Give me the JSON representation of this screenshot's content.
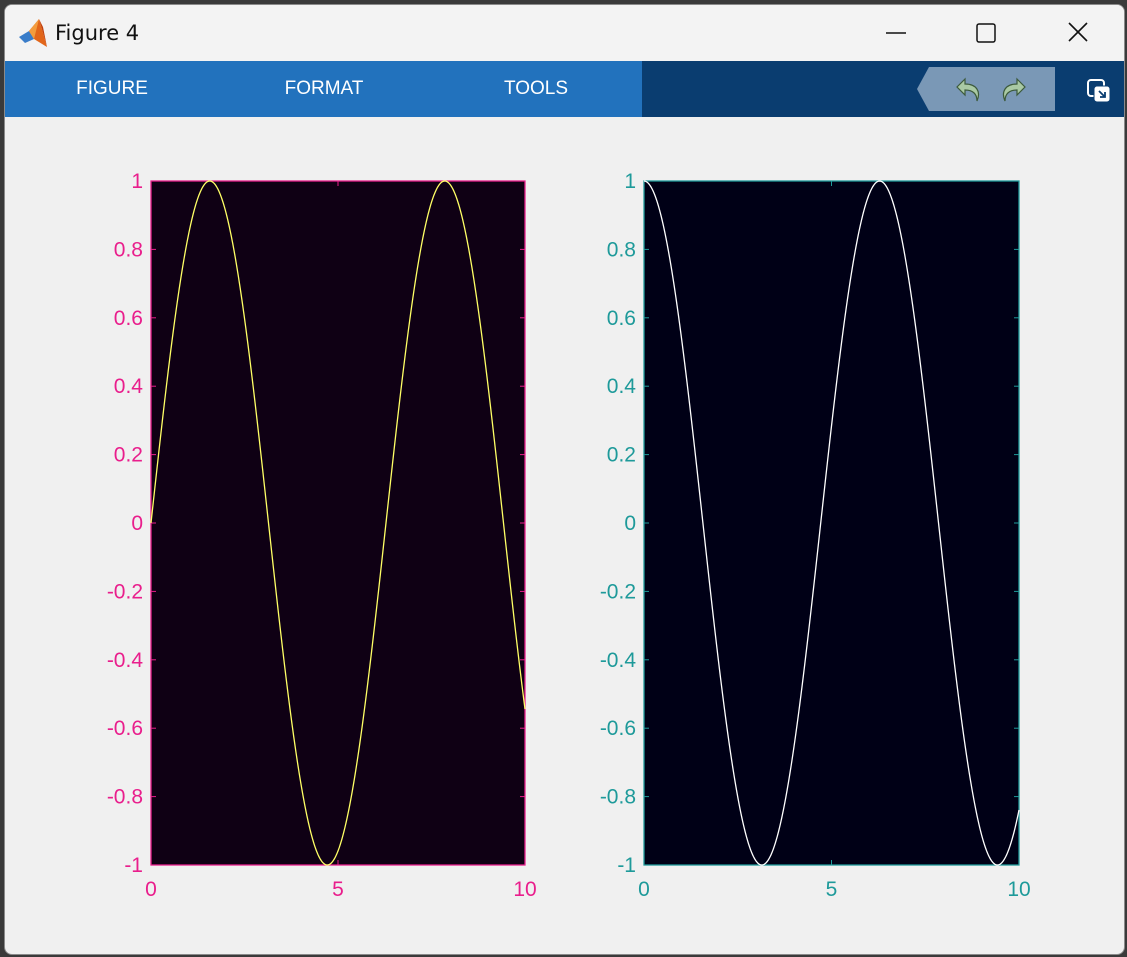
{
  "window": {
    "title": "Figure 4",
    "minimize_icon": "minimize-icon",
    "maximize_icon": "maximize-icon",
    "close_icon": "close-icon"
  },
  "toolstrip": {
    "tabs": [
      {
        "label": "FIGURE"
      },
      {
        "label": "FORMAT"
      },
      {
        "label": "TOOLS"
      }
    ],
    "undo_icon": "undo-icon",
    "redo_icon": "redo-icon",
    "undock_icon": "undock-icon"
  },
  "chart_data": [
    {
      "type": "line",
      "series": [
        {
          "function": "sin(x)",
          "color": "#ffff66",
          "x_range": [
            0,
            10
          ]
        }
      ],
      "xlim": [
        0,
        10
      ],
      "ylim": [
        -1,
        1
      ],
      "xticks": [
        "0",
        "5",
        "10"
      ],
      "yticks": [
        "-1",
        "-0.8",
        "-0.6",
        "-0.4",
        "-0.2",
        "0",
        "0.2",
        "0.4",
        "0.6",
        "0.8",
        "1"
      ],
      "axes_color": "#e91e8c",
      "background": "#0f0014",
      "grid": false
    },
    {
      "type": "line",
      "series": [
        {
          "function": "cos(x)",
          "color": "#ffffff",
          "x_range": [
            0,
            10
          ]
        }
      ],
      "xlim": [
        0,
        10
      ],
      "ylim": [
        -1,
        1
      ],
      "xticks": [
        "0",
        "5",
        "10"
      ],
      "yticks": [
        "-1",
        "-0.8",
        "-0.6",
        "-0.4",
        "-0.2",
        "0",
        "0.2",
        "0.4",
        "0.6",
        "0.8",
        "1"
      ],
      "axes_color": "#1e9a9a",
      "background": "#000016",
      "grid": false
    }
  ]
}
